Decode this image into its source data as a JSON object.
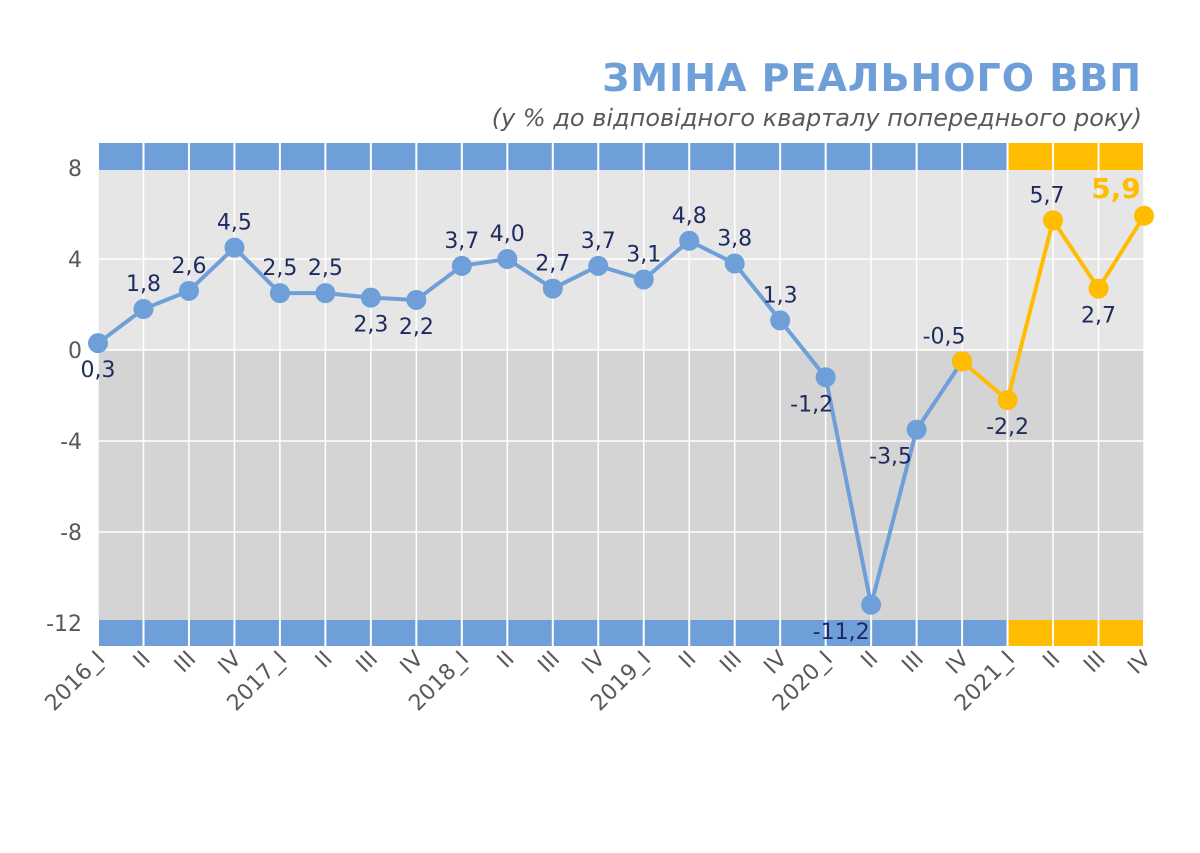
{
  "header": {
    "title": "ЗМІНА РЕАЛЬНОГО ВВП",
    "subtitle": "(у % до відповідного кварталу попереднього року)"
  },
  "colors": {
    "actual": "#6f9fd8",
    "forecast": "#ffbc00",
    "label": "#1f2a5e",
    "axis_text": "#595959",
    "band_positive": "#e6e6e6",
    "band_negative": "#d4d4d4"
  },
  "chart_data": {
    "type": "line",
    "title": "ЗМІНА РЕАЛЬНОГО ВВП",
    "subtitle": "(у % до відповідного кварталу попереднього року)",
    "categories": [
      "2016_I",
      "II",
      "III",
      "IV",
      "2017_I",
      "II",
      "III",
      "IV",
      "2018_I",
      "II",
      "III",
      "IV",
      "2019_I",
      "II",
      "III",
      "IV",
      "2020_I",
      "II",
      "III",
      "IV",
      "2021_I",
      "II",
      "III",
      "IV"
    ],
    "series": [
      {
        "values": [
          0.3,
          1.8,
          2.6,
          4.5,
          2.5,
          2.5,
          2.3,
          2.2,
          3.7,
          4.0,
          2.7,
          3.7,
          3.1,
          4.8,
          3.8,
          1.3,
          -1.2,
          -11.2,
          -3.5,
          -0.5,
          null,
          null,
          null,
          null
        ],
        "labels": [
          "0,3",
          "1,8",
          "2,6",
          "4,5",
          "2,5",
          "2,5",
          "2,3",
          "2,2",
          "3,7",
          "4,0",
          "2,7",
          "3,7",
          "3,1",
          "4,8",
          "3,8",
          "1,3",
          "-1,2",
          "-11,2",
          "-3,5",
          "-0,5",
          null,
          null,
          null,
          null
        ]
      },
      {
        "values": [
          null,
          null,
          null,
          null,
          null,
          null,
          null,
          null,
          null,
          null,
          null,
          null,
          null,
          null,
          null,
          null,
          null,
          null,
          null,
          -0.5,
          -2.2,
          5.7,
          2.7,
          5.9
        ],
        "labels": [
          null,
          null,
          null,
          null,
          null,
          null,
          null,
          null,
          null,
          null,
          null,
          null,
          null,
          null,
          null,
          null,
          null,
          null,
          null,
          null,
          "-2,2",
          "5,7",
          "2,7",
          "5,9"
        ]
      }
    ],
    "yticks": [
      "8",
      "4",
      "0",
      "-4",
      "-8",
      "-12"
    ],
    "ytick_values": [
      8,
      4,
      0,
      -4,
      -8,
      -12
    ],
    "ylim": [
      -12,
      8
    ],
    "grid": true,
    "forecast_start_index": 20
  }
}
